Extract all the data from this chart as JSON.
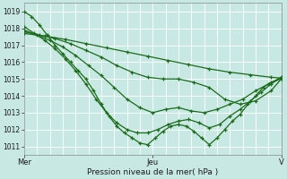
{
  "bg_color": "#c8e8e4",
  "grid_color": "#ffffff",
  "line_color": "#1a6b1a",
  "marker": "+",
  "xlabel": "Pression niveau de la mer( hPa )",
  "ylim": [
    1010.5,
    1019.5
  ],
  "yticks": [
    1011,
    1012,
    1013,
    1014,
    1015,
    1016,
    1017,
    1018,
    1019
  ],
  "xtick_labels": [
    "Mer",
    "Jeu",
    "V"
  ],
  "xtick_positions": [
    0.0,
    0.5,
    1.0
  ],
  "n_vgrid": 20,
  "n_hgrid": 9,
  "lines": [
    [
      [
        0.0,
        1019.0
      ],
      [
        0.03,
        1018.7
      ],
      [
        0.06,
        1018.2
      ],
      [
        0.09,
        1017.6
      ],
      [
        0.12,
        1017.0
      ],
      [
        0.15,
        1016.5
      ],
      [
        0.18,
        1016.0
      ],
      [
        0.21,
        1015.5
      ],
      [
        0.24,
        1015.0
      ],
      [
        0.27,
        1014.3
      ],
      [
        0.3,
        1013.5
      ],
      [
        0.33,
        1012.8
      ],
      [
        0.36,
        1012.2
      ],
      [
        0.39,
        1011.8
      ],
      [
        0.42,
        1011.5
      ],
      [
        0.45,
        1011.2
      ],
      [
        0.48,
        1011.1
      ],
      [
        0.51,
        1011.5
      ],
      [
        0.54,
        1011.9
      ],
      [
        0.57,
        1012.2
      ],
      [
        0.6,
        1012.3
      ],
      [
        0.63,
        1012.2
      ],
      [
        0.66,
        1011.9
      ],
      [
        0.69,
        1011.5
      ],
      [
        0.72,
        1011.1
      ],
      [
        0.75,
        1011.5
      ],
      [
        0.78,
        1012.0
      ],
      [
        0.81,
        1012.5
      ],
      [
        0.84,
        1012.9
      ],
      [
        0.87,
        1013.5
      ],
      [
        0.9,
        1014.0
      ],
      [
        0.93,
        1014.5
      ],
      [
        0.96,
        1014.8
      ],
      [
        1.0,
        1015.0
      ]
    ],
    [
      [
        0.0,
        1018.1
      ],
      [
        0.04,
        1017.7
      ],
      [
        0.08,
        1017.3
      ],
      [
        0.12,
        1016.8
      ],
      [
        0.16,
        1016.2
      ],
      [
        0.2,
        1015.5
      ],
      [
        0.24,
        1014.7
      ],
      [
        0.28,
        1013.8
      ],
      [
        0.32,
        1013.0
      ],
      [
        0.36,
        1012.4
      ],
      [
        0.4,
        1012.0
      ],
      [
        0.44,
        1011.8
      ],
      [
        0.48,
        1011.8
      ],
      [
        0.52,
        1012.0
      ],
      [
        0.56,
        1012.3
      ],
      [
        0.6,
        1012.5
      ],
      [
        0.64,
        1012.6
      ],
      [
        0.68,
        1012.4
      ],
      [
        0.72,
        1012.1
      ],
      [
        0.76,
        1012.3
      ],
      [
        0.8,
        1012.8
      ],
      [
        0.84,
        1013.2
      ],
      [
        0.88,
        1013.7
      ],
      [
        0.92,
        1014.2
      ],
      [
        0.96,
        1014.7
      ],
      [
        1.0,
        1015.1
      ]
    ],
    [
      [
        0.0,
        1017.9
      ],
      [
        0.05,
        1017.6
      ],
      [
        0.1,
        1017.3
      ],
      [
        0.15,
        1016.9
      ],
      [
        0.2,
        1016.4
      ],
      [
        0.25,
        1015.8
      ],
      [
        0.3,
        1015.2
      ],
      [
        0.35,
        1014.5
      ],
      [
        0.4,
        1013.8
      ],
      [
        0.45,
        1013.3
      ],
      [
        0.5,
        1013.0
      ],
      [
        0.55,
        1013.2
      ],
      [
        0.6,
        1013.3
      ],
      [
        0.65,
        1013.1
      ],
      [
        0.7,
        1013.0
      ],
      [
        0.75,
        1013.2
      ],
      [
        0.8,
        1013.5
      ],
      [
        0.85,
        1013.8
      ],
      [
        0.9,
        1014.3
      ],
      [
        0.95,
        1014.7
      ],
      [
        1.0,
        1015.1
      ]
    ],
    [
      [
        0.0,
        1017.8
      ],
      [
        0.06,
        1017.6
      ],
      [
        0.12,
        1017.4
      ],
      [
        0.18,
        1017.1
      ],
      [
        0.24,
        1016.7
      ],
      [
        0.3,
        1016.3
      ],
      [
        0.36,
        1015.8
      ],
      [
        0.42,
        1015.4
      ],
      [
        0.48,
        1015.1
      ],
      [
        0.54,
        1015.0
      ],
      [
        0.6,
        1015.0
      ],
      [
        0.66,
        1014.8
      ],
      [
        0.72,
        1014.5
      ],
      [
        0.78,
        1013.8
      ],
      [
        0.84,
        1013.5
      ],
      [
        0.9,
        1013.7
      ],
      [
        0.96,
        1014.3
      ],
      [
        1.0,
        1015.0
      ]
    ],
    [
      [
        0.0,
        1017.7
      ],
      [
        0.08,
        1017.55
      ],
      [
        0.16,
        1017.35
      ],
      [
        0.24,
        1017.1
      ],
      [
        0.32,
        1016.85
      ],
      [
        0.4,
        1016.6
      ],
      [
        0.48,
        1016.35
      ],
      [
        0.56,
        1016.1
      ],
      [
        0.64,
        1015.85
      ],
      [
        0.72,
        1015.6
      ],
      [
        0.8,
        1015.4
      ],
      [
        0.88,
        1015.25
      ],
      [
        0.96,
        1015.1
      ],
      [
        1.0,
        1015.05
      ]
    ]
  ]
}
